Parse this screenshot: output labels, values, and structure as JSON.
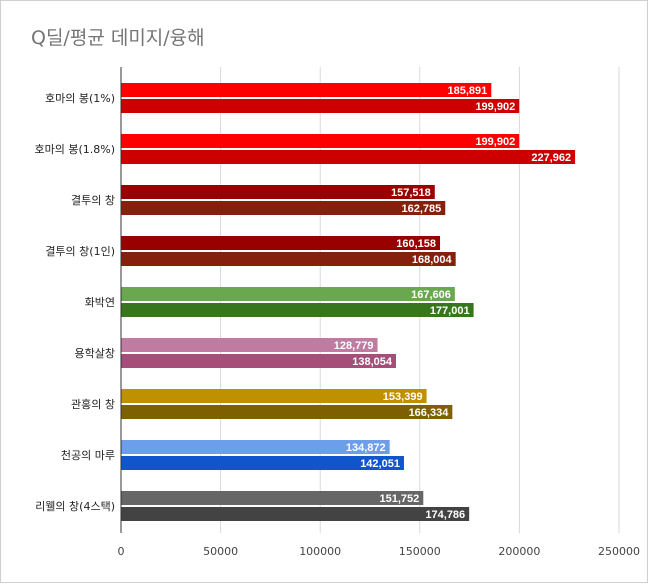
{
  "chart_data": {
    "type": "bar",
    "orientation": "horizontal",
    "title": "Q딜/평균 데미지/융해",
    "categories": [
      "호마의 봉(1%)",
      "호마의 봉(1.8%)",
      "결투의 창",
      "결투의 창(1인)",
      "화박연",
      "용학살창",
      "관홍의 창",
      "천공의 마루",
      "리웰의 창(4스택)"
    ],
    "series": [
      {
        "name": "series-1",
        "values": [
          185891,
          199902,
          157518,
          160158,
          167606,
          128779,
          153399,
          134872,
          151752
        ],
        "labels": [
          "185,891",
          "199,902",
          "157,518",
          "160,158",
          "167,606",
          "128,779",
          "153,399",
          "134,872",
          "151,752"
        ]
      },
      {
        "name": "series-2",
        "values": [
          199902,
          227962,
          162785,
          168004,
          177001,
          138054,
          166334,
          142051,
          174786
        ],
        "labels": [
          "199,902",
          "227,962",
          "162,785",
          "168,004",
          "177,001",
          "138,054",
          "166,334",
          "142,051",
          "174,786"
        ]
      }
    ],
    "bar_colors": [
      [
        "#ff0000",
        "#cc0000"
      ],
      [
        "#ff0000",
        "#cc0000"
      ],
      [
        "#990000",
        "#85200c"
      ],
      [
        "#990000",
        "#85200c"
      ],
      [
        "#6aa84f",
        "#38761d"
      ],
      [
        "#c27ba0",
        "#a64d79"
      ],
      [
        "#bf9000",
        "#7f6000"
      ],
      [
        "#6d9eeb",
        "#1155cc"
      ],
      [
        "#666666",
        "#434343"
      ]
    ],
    "xlim": [
      0,
      250000
    ],
    "xticks": [
      0,
      50000,
      100000,
      150000,
      200000,
      250000
    ],
    "xtick_labels": [
      "0",
      "50000",
      "100000",
      "150000",
      "200000",
      "250000"
    ],
    "gridlines": true,
    "xlabel": "",
    "ylabel": ""
  }
}
